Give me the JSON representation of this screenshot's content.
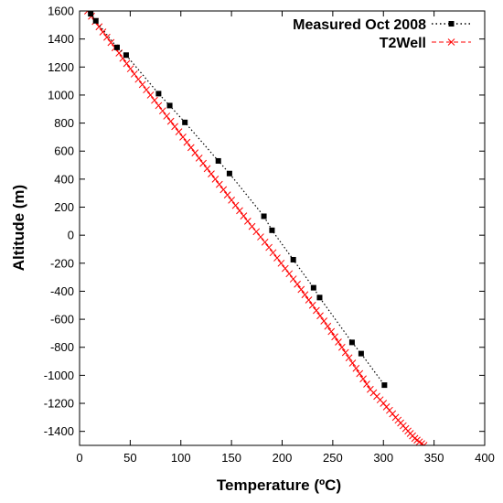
{
  "chart_data": {
    "type": "line",
    "title": "",
    "xlabel": "Temperature (ºC)",
    "ylabel": "Altitude (m)",
    "xlim": [
      0,
      400
    ],
    "ylim": [
      -1500,
      1600
    ],
    "xticks": [
      0,
      50,
      100,
      150,
      200,
      250,
      300,
      350,
      400
    ],
    "yticks": [
      -1400,
      -1200,
      -1000,
      -800,
      -600,
      -400,
      -200,
      0,
      200,
      400,
      600,
      800,
      1000,
      1200,
      1400,
      1600
    ],
    "grid": false,
    "legend_position": "top-right",
    "series": [
      {
        "name": "Measured Oct 2008",
        "color": "#000000",
        "style": "dotted-with-markers",
        "x": [
          11,
          16,
          37,
          46,
          78,
          89,
          104,
          137,
          148,
          182,
          190,
          211,
          231,
          237,
          269,
          278,
          301
        ],
        "y": [
          1580,
          1530,
          1340,
          1285,
          1010,
          925,
          805,
          530,
          440,
          135,
          35,
          -175,
          -375,
          -445,
          -765,
          -845,
          -1070
        ]
      },
      {
        "name": "T2Well",
        "color": "#ff0000",
        "style": "dashed-with-x-markers",
        "x": [
          8,
          23,
          39,
          54,
          70,
          86,
          102,
          118,
          134,
          150,
          166,
          183,
          199,
          215,
          230,
          245,
          259,
          273,
          287,
          300,
          312,
          322,
          331,
          340
        ],
        "y": [
          1600,
          1450,
          1300,
          1150,
          1000,
          850,
          700,
          550,
          400,
          250,
          100,
          -50,
          -200,
          -350,
          -500,
          -650,
          -800,
          -950,
          -1100,
          -1200,
          -1300,
          -1380,
          -1450,
          -1500
        ]
      }
    ]
  }
}
